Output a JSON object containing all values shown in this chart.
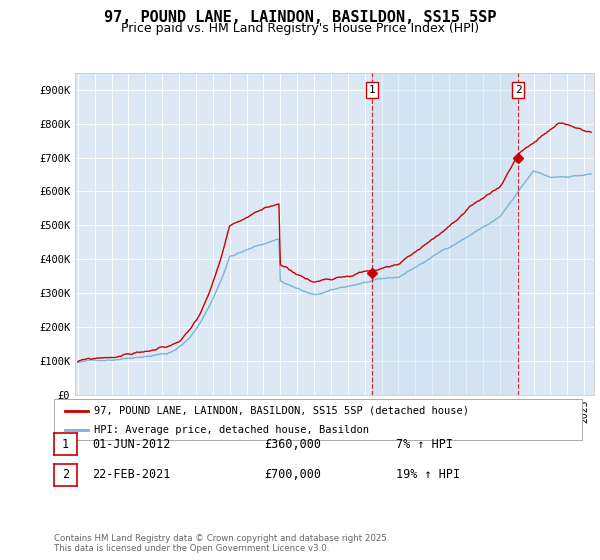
{
  "title": "97, POUND LANE, LAINDON, BASILDON, SS15 5SP",
  "subtitle": "Price paid vs. HM Land Registry's House Price Index (HPI)",
  "ylim": [
    0,
    950000
  ],
  "yticks": [
    0,
    100000,
    200000,
    300000,
    400000,
    500000,
    600000,
    700000,
    800000,
    900000
  ],
  "ytick_labels": [
    "£0",
    "£100K",
    "£200K",
    "£300K",
    "£400K",
    "£500K",
    "£600K",
    "£700K",
    "£800K",
    "£900K"
  ],
  "fig_bg_color": "#ffffff",
  "plot_bg_color": "#dce9f5",
  "line1_color": "#cc0000",
  "line2_color": "#7ab4d8",
  "shade_color": "#c5d9ee",
  "vline_color": "#cc0000",
  "legend_label1": "97, POUND LANE, LAINDON, BASILDON, SS15 5SP (detached house)",
  "legend_label2": "HPI: Average price, detached house, Basildon",
  "annotation1": [
    "1",
    "01-JUN-2012",
    "£360,000",
    "7% ↑ HPI"
  ],
  "annotation2": [
    "2",
    "22-FEB-2021",
    "£700,000",
    "19% ↑ HPI"
  ],
  "footer": "Contains HM Land Registry data © Crown copyright and database right 2025.\nThis data is licensed under the Open Government Licence v3.0.",
  "title_fontsize": 11,
  "subtitle_fontsize": 9,
  "tick_fontsize": 7.5,
  "grid_color": "#ffffff",
  "start_year": 1995,
  "end_year": 2025
}
